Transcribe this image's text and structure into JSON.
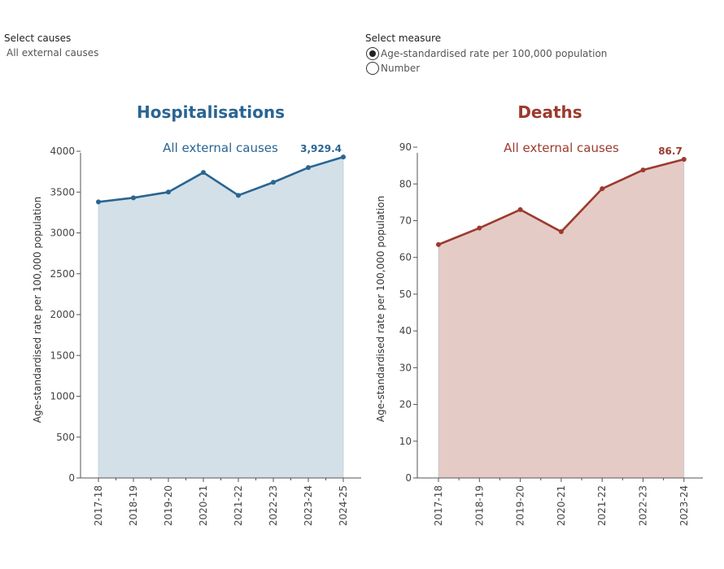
{
  "controls": {
    "causes_label": "Select causes",
    "causes_value": "All external causes",
    "measure_label": "Select measure",
    "measure_options": [
      {
        "label": "Age-standardised rate per 100,000 population",
        "selected": true
      },
      {
        "label": "Number",
        "selected": false
      }
    ]
  },
  "colors": {
    "hosp_line": "#2a6592",
    "hosp_fill": "#d3e0e8",
    "deaths_line": "#9c3a2e",
    "deaths_fill": "#e5cbc6"
  },
  "panels": {
    "hospitalisations": {
      "title": "Hospitalisations"
    },
    "deaths": {
      "title": "Deaths"
    }
  },
  "chart_data": [
    {
      "type": "area",
      "subtitle": "All external causes",
      "ylabel": "Age-standardised rate per 100,000 population",
      "categories": [
        "2017-18",
        "2018-19",
        "2019-20",
        "2020-21",
        "2021-22",
        "2022-23",
        "2023-24",
        "2024-25"
      ],
      "values": [
        3380,
        3430,
        3500,
        3740,
        3460,
        3620,
        3800,
        3929.4
      ],
      "yticks": [
        0,
        500,
        1000,
        1500,
        2000,
        2500,
        3000,
        3500,
        4000
      ],
      "ytick_labels": [
        "0",
        "500",
        "1000",
        "1500",
        "2000",
        "2500",
        "3000",
        "3500",
        "4000"
      ],
      "ylim": [
        0,
        4120
      ],
      "last_label": "3,929.4"
    },
    {
      "type": "area",
      "subtitle": "All external causes",
      "ylabel": "Age-standardised rate per 100,000 population",
      "categories": [
        "2017-18",
        "2018-19",
        "2019-20",
        "2020-21",
        "2021-22",
        "2022-23",
        "2023-24"
      ],
      "values": [
        63.5,
        68.0,
        73.0,
        67.0,
        78.7,
        83.8,
        86.7
      ],
      "yticks": [
        0,
        10,
        20,
        30,
        40,
        50,
        60,
        70,
        80,
        90
      ],
      "ytick_labels": [
        "0",
        "10",
        "20",
        "30",
        "40",
        "50",
        "60",
        "70",
        "80",
        "90"
      ],
      "ylim": [
        0,
        92
      ],
      "last_label": "86.7"
    }
  ]
}
